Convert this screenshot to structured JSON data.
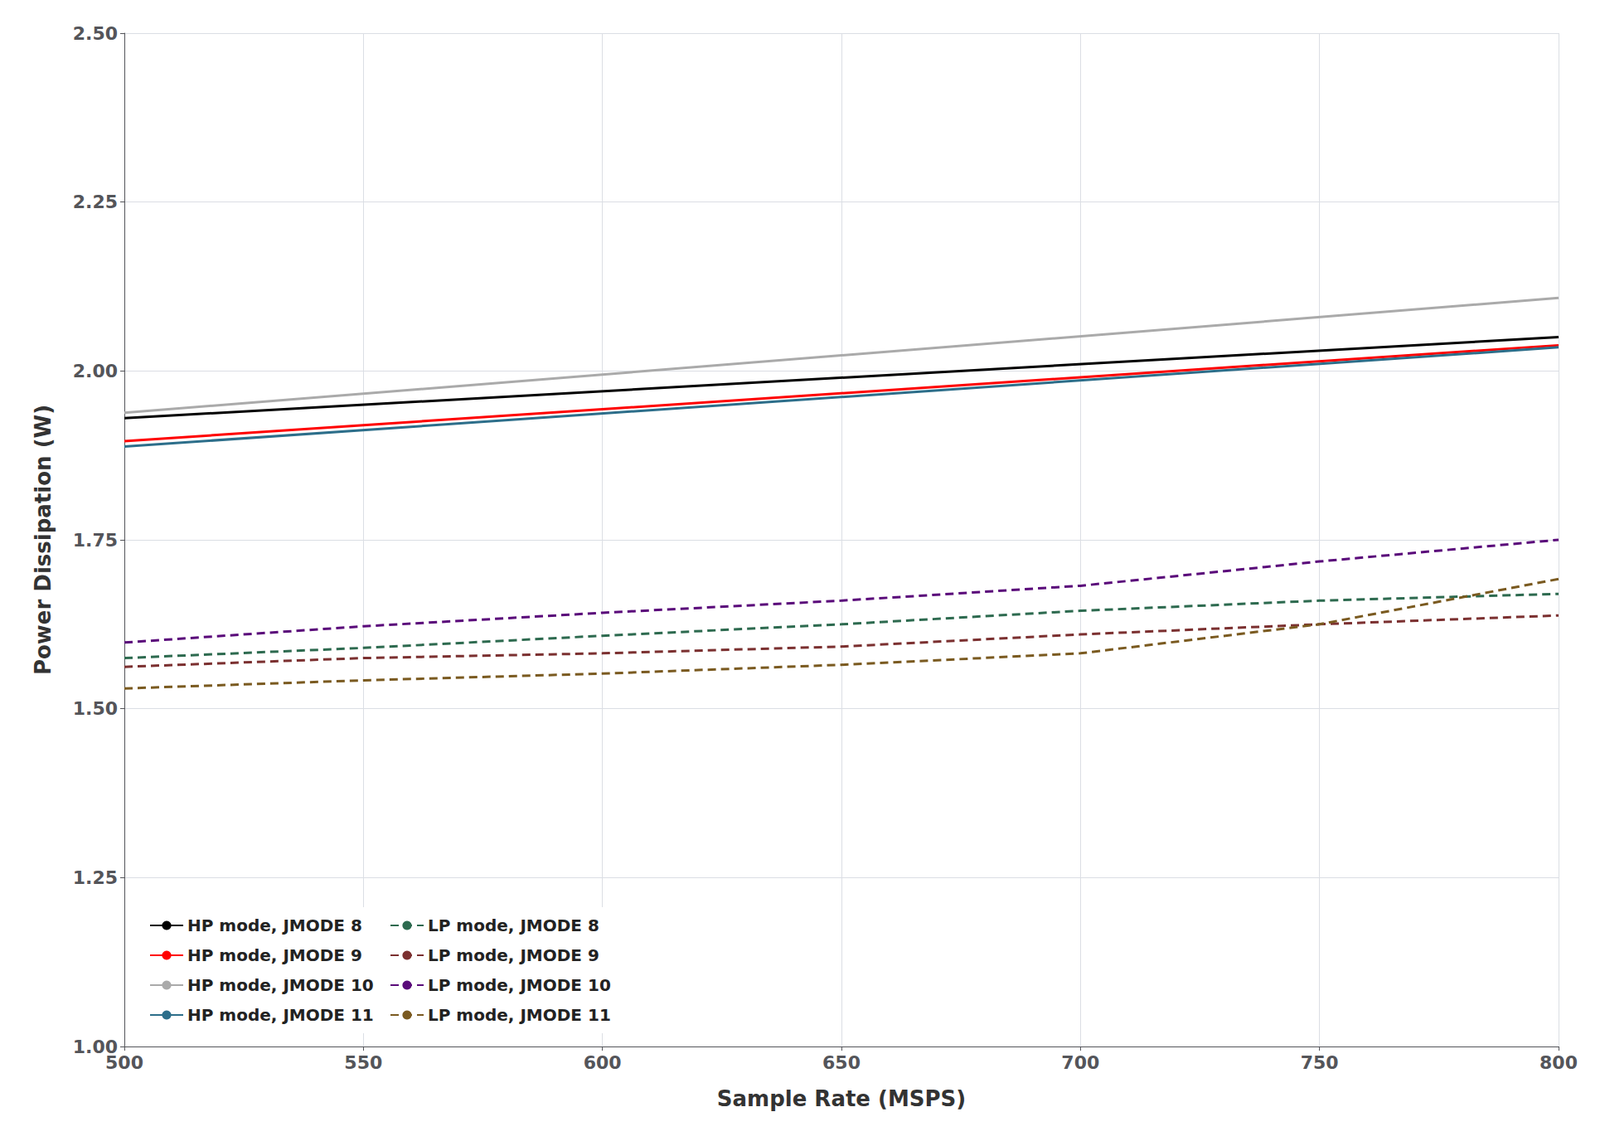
{
  "chart_data": {
    "type": "line",
    "xlabel": "Sample Rate (MSPS)",
    "ylabel": "Power Dissipation (W)",
    "xlim": [
      500,
      800
    ],
    "ylim": [
      1.0,
      2.5
    ],
    "xticks": [
      500,
      550,
      600,
      650,
      700,
      750,
      800
    ],
    "yticks": [
      {
        "value": 1.0,
        "label": "1.00"
      },
      1.25,
      {
        "value": 1.5,
        "label": "1.50"
      },
      1.75,
      {
        "value": 2.0,
        "label": "2.00"
      },
      2.25,
      {
        "value": 2.5,
        "label": "2.50"
      }
    ],
    "grid": true,
    "legend": "lower left",
    "series": [
      {
        "name": "HP mode, JMODE 8",
        "color": "#000000",
        "line_style": "solid",
        "x": [
          500,
          800
        ],
        "values": [
          1.93,
          2.05
        ]
      },
      {
        "name": "HP mode, JMODE 9",
        "color": "#ff0000",
        "line_style": "solid",
        "x": [
          500,
          800
        ],
        "values": [
          1.896,
          2.038
        ]
      },
      {
        "name": "HP mode, JMODE 10",
        "color": "#aaaaaa",
        "line_style": "solid",
        "x": [
          500,
          800
        ],
        "values": [
          1.938,
          2.108
        ]
      },
      {
        "name": "HP mode, JMODE 11",
        "color": "#2c6e8a",
        "line_style": "solid",
        "x": [
          500,
          800
        ],
        "values": [
          1.888,
          2.035
        ]
      },
      {
        "name": "LP mode, JMODE 8",
        "color": "#2d6a4f",
        "line_style": "dashed",
        "x": [
          500,
          550,
          600,
          650,
          700,
          750,
          800
        ],
        "values": [
          1.575,
          1.59,
          1.608,
          1.625,
          1.645,
          1.66,
          1.67
        ]
      },
      {
        "name": "LP mode, JMODE 9",
        "color": "#7b3030",
        "line_style": "dashed",
        "x": [
          500,
          550,
          600,
          650,
          700,
          750,
          800
        ],
        "values": [
          1.562,
          1.575,
          1.582,
          1.592,
          1.61,
          1.625,
          1.638
        ]
      },
      {
        "name": "LP mode, JMODE 10",
        "color": "#5a0a7a",
        "line_style": "dashed",
        "x": [
          500,
          550,
          600,
          650,
          700,
          750,
          800
        ],
        "values": [
          1.598,
          1.622,
          1.642,
          1.66,
          1.682,
          1.718,
          1.75
        ]
      },
      {
        "name": "LP mode, JMODE 11",
        "color": "#7a5a20",
        "line_style": "dashed",
        "x": [
          500,
          550,
          600,
          650,
          700,
          750,
          800
        ],
        "values": [
          1.53,
          1.542,
          1.552,
          1.565,
          1.582,
          1.625,
          1.692
        ]
      }
    ]
  }
}
